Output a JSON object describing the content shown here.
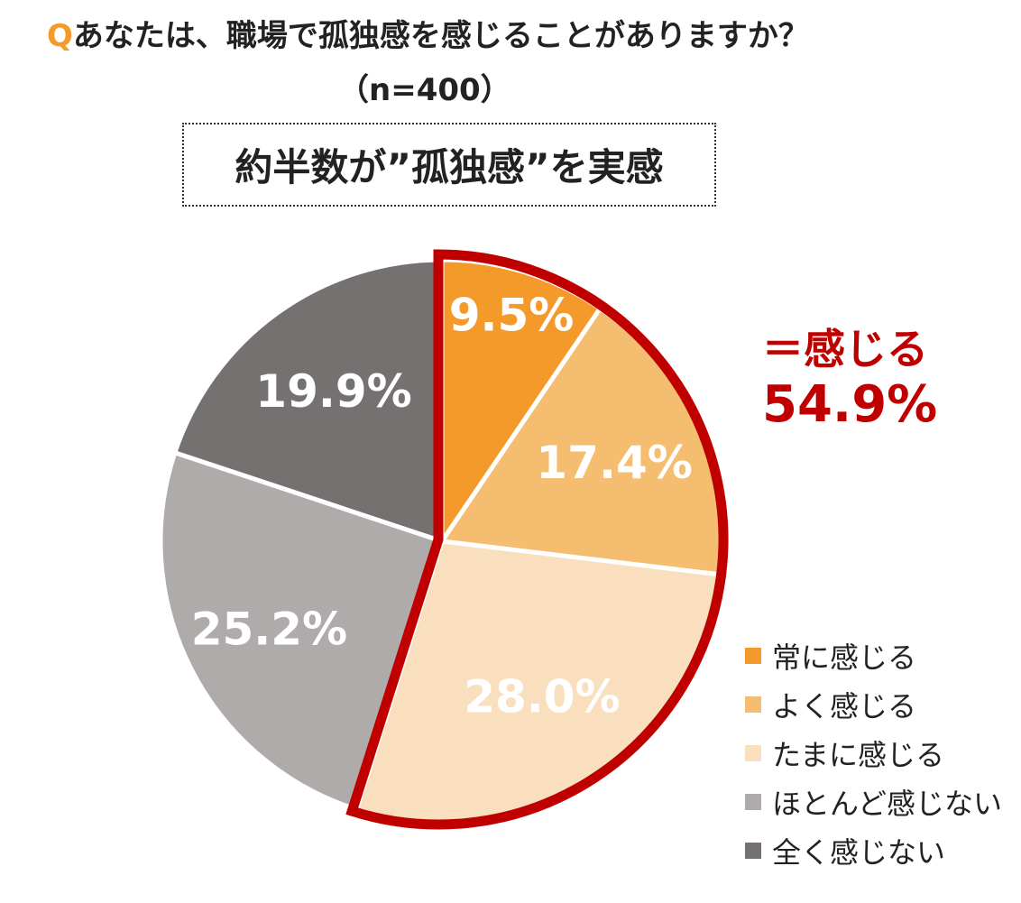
{
  "question": {
    "mark": "Q",
    "text": "あなたは、職場で孤独感を感じることがありますか？",
    "sample": "（n=400）"
  },
  "headline": "約半数が”孤独感”を実感",
  "callout": {
    "label": "＝感じる",
    "value": "54.9%"
  },
  "chart_data": {
    "type": "pie",
    "start": "top",
    "direction": "clockwise",
    "categories": [
      "常に感じる",
      "よく感じる",
      "たまに感じる",
      "ほとんど感じない",
      "全く感じない"
    ],
    "values": [
      9.5,
      17.4,
      28.0,
      25.2,
      19.9
    ],
    "value_labels": [
      "9.5%",
      "17.4%",
      "28.0%",
      "25.2%",
      "19.9%"
    ],
    "colors": [
      "#f39a2b",
      "#f5bd6f",
      "#fadfbe",
      "#afabaa",
      "#767171"
    ],
    "highlight": {
      "categories": [
        "常に感じる",
        "よく感じる",
        "たまに感じる"
      ],
      "color": "#c00000"
    },
    "legend": "bottom-right"
  }
}
